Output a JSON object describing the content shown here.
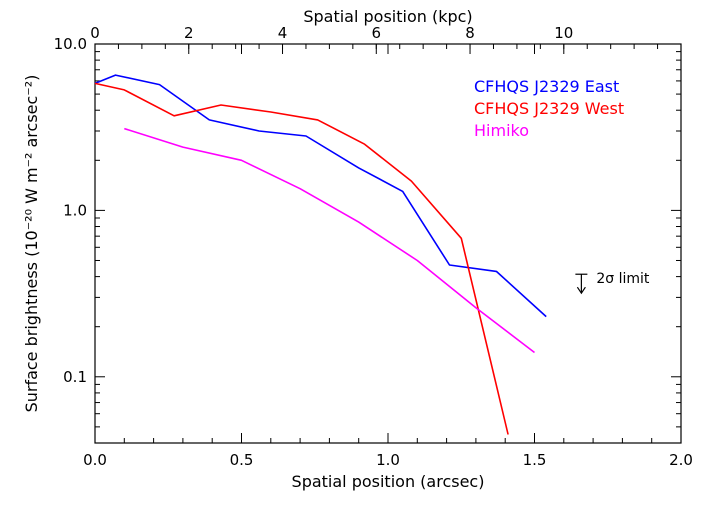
{
  "chart_data": {
    "type": "line",
    "xlabel": "Spatial position (arcsec)",
    "ylabel": "Surface brightness (10⁻²⁰ W m⁻² arcsec⁻²)",
    "top_xlabel": "Spatial position (kpc)",
    "xlim": [
      0.0,
      2.0
    ],
    "ylim": [
      0.04,
      10.0
    ],
    "yscale": "log",
    "top_xlim": [
      0,
      12.5
    ],
    "x_ticks": [
      0.0,
      0.5,
      1.0,
      1.5,
      2.0
    ],
    "x_tick_labels": [
      "0.0",
      "0.5",
      "1.0",
      "1.5",
      "2.0"
    ],
    "top_x_ticks": [
      0,
      2,
      4,
      6,
      8,
      10
    ],
    "top_x_tick_labels": [
      "0",
      "2",
      "4",
      "6",
      "8",
      "10"
    ],
    "y_ticks": [
      0.1,
      1.0,
      10.0
    ],
    "y_tick_labels": [
      "0.1",
      "1.0",
      "10.0"
    ],
    "grid": false,
    "legend_position": "top-right",
    "series": [
      {
        "name": "CFHQS J2329 East",
        "color": "#0000ff",
        "x": [
          0.0,
          0.07,
          0.22,
          0.39,
          0.56,
          0.72,
          0.9,
          1.05,
          1.21,
          1.37,
          1.54
        ],
        "y": [
          5.8,
          6.5,
          5.7,
          3.5,
          3.0,
          2.8,
          1.8,
          1.3,
          0.47,
          0.43,
          0.23
        ]
      },
      {
        "name": "CFHQS J2329 West",
        "color": "#ff0000",
        "x": [
          0.0,
          0.1,
          0.27,
          0.43,
          0.6,
          0.76,
          0.92,
          1.08,
          1.25,
          1.41
        ],
        "y": [
          5.8,
          5.3,
          3.7,
          4.3,
          3.9,
          3.5,
          2.5,
          1.5,
          0.68,
          0.045
        ]
      },
      {
        "name": "Himiko",
        "color": "#ff00ff",
        "x": [
          0.1,
          0.3,
          0.5,
          0.7,
          0.9,
          1.1,
          1.3,
          1.5
        ],
        "y": [
          3.1,
          2.4,
          2.0,
          1.35,
          0.85,
          0.5,
          0.26,
          0.14
        ]
      }
    ],
    "annotations": [
      {
        "text": "2σ limit",
        "x": 1.66,
        "y": 0.36,
        "symbol": "upper-limit-arrow"
      }
    ]
  }
}
